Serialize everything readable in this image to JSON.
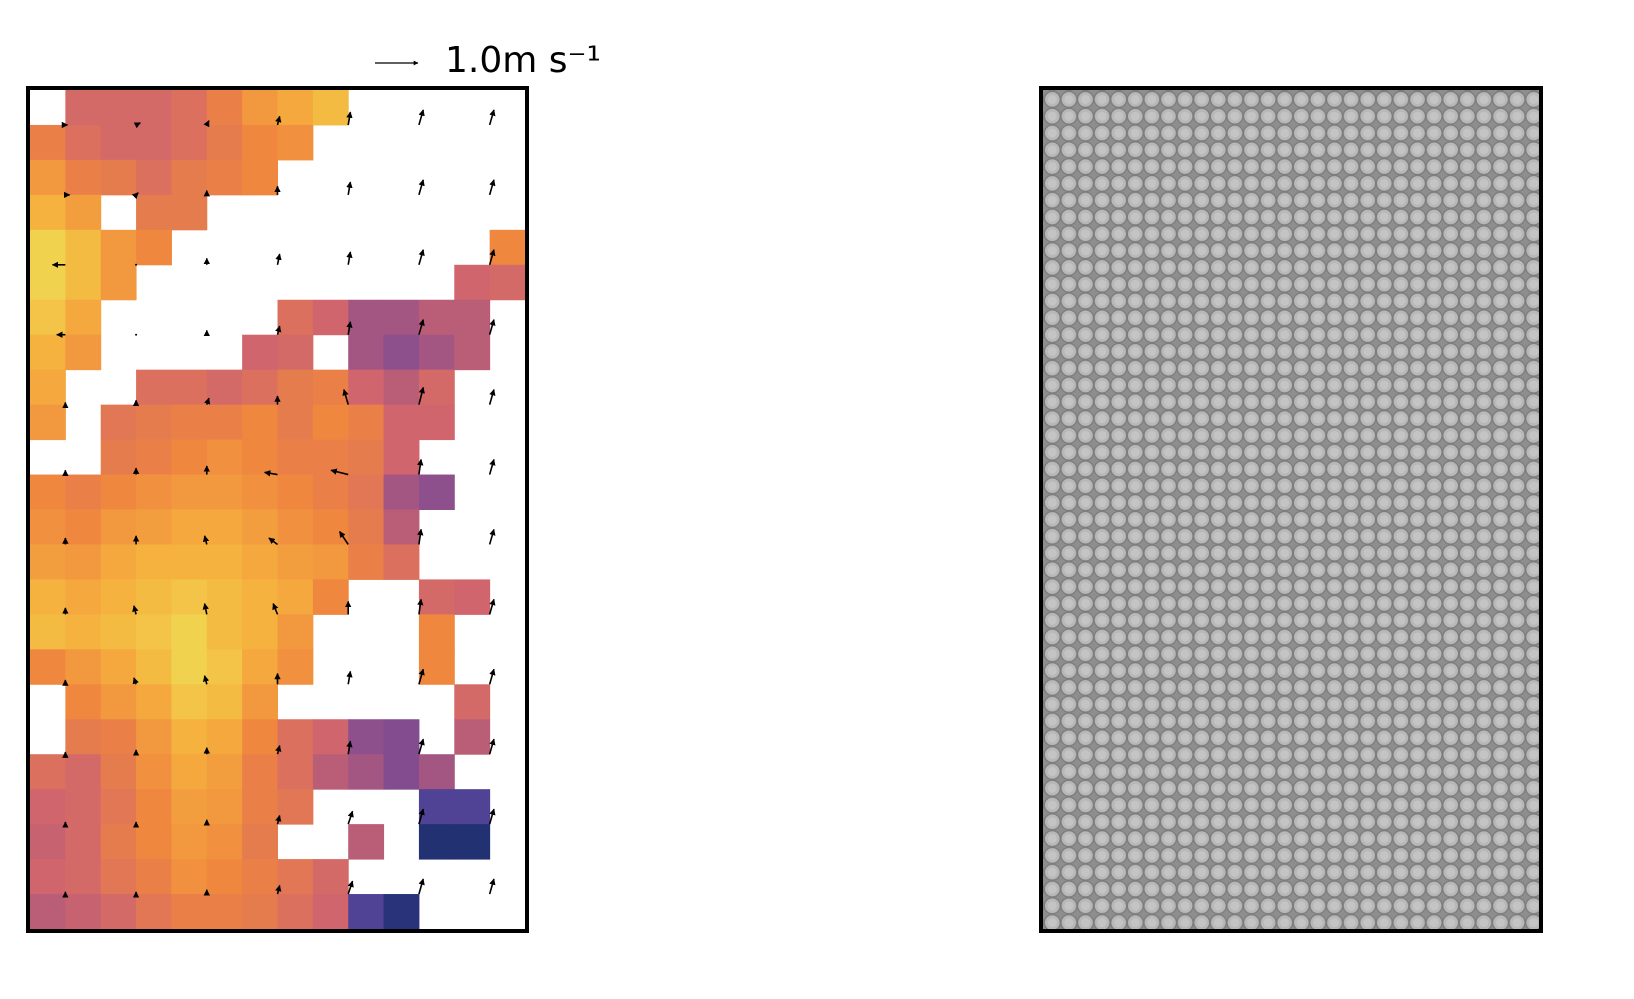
{
  "chart_data": {
    "type": "heatmap-quiver",
    "vlim": [
      0,
      1
    ],
    "colormap": [
      [
        0,
        "#0b2550"
      ],
      [
        0.25,
        "#3b3d96"
      ],
      [
        0.45,
        "#8e4f8d"
      ],
      [
        0.6,
        "#d0656d"
      ],
      [
        0.75,
        "#f0873f"
      ],
      [
        0.88,
        "#f5b23e"
      ],
      [
        1,
        "#eee95a"
      ]
    ],
    "values": [
      [
        null,
        0.62,
        0.62,
        0.62,
        0.65,
        0.72,
        0.8,
        0.85,
        0.9,
        null,
        null,
        null,
        null,
        null
      ],
      [
        0.72,
        0.65,
        0.62,
        0.62,
        0.65,
        0.7,
        0.75,
        0.78,
        null,
        null,
        null,
        null,
        null,
        null
      ],
      [
        0.8,
        0.72,
        0.7,
        0.65,
        0.7,
        0.72,
        0.75,
        null,
        null,
        null,
        null,
        null,
        null,
        null
      ],
      [
        0.88,
        0.82,
        null,
        0.7,
        0.7,
        null,
        null,
        null,
        null,
        null,
        null,
        null,
        null,
        null
      ],
      [
        0.95,
        0.9,
        0.8,
        0.75,
        null,
        null,
        null,
        null,
        null,
        null,
        null,
        null,
        null,
        0.75
      ],
      [
        0.95,
        0.9,
        0.8,
        null,
        null,
        null,
        null,
        null,
        null,
        null,
        null,
        null,
        0.6,
        0.62
      ],
      [
        0.92,
        0.85,
        null,
        null,
        null,
        null,
        null,
        0.65,
        0.6,
        0.5,
        0.5,
        0.55,
        0.55,
        null
      ],
      [
        0.88,
        0.8,
        null,
        null,
        null,
        null,
        0.6,
        0.62,
        null,
        0.5,
        0.45,
        0.5,
        0.55,
        null
      ],
      [
        0.85,
        null,
        null,
        0.65,
        0.65,
        0.62,
        0.65,
        0.7,
        0.72,
        0.6,
        0.55,
        0.62,
        null,
        null
      ],
      [
        0.8,
        null,
        0.68,
        0.7,
        0.72,
        0.72,
        0.75,
        0.7,
        0.75,
        0.72,
        0.6,
        0.6,
        null,
        null
      ],
      [
        null,
        null,
        0.7,
        0.72,
        0.75,
        0.78,
        0.75,
        0.72,
        0.72,
        0.7,
        0.6,
        null,
        null,
        null
      ],
      [
        0.75,
        0.72,
        0.75,
        0.78,
        0.8,
        0.8,
        0.78,
        0.75,
        0.72,
        0.68,
        0.5,
        0.45,
        null,
        null
      ],
      [
        0.78,
        0.75,
        0.8,
        0.82,
        0.85,
        0.85,
        0.82,
        0.78,
        0.75,
        0.7,
        0.55,
        null,
        null,
        null
      ],
      [
        0.82,
        0.8,
        0.85,
        0.88,
        0.88,
        0.88,
        0.85,
        0.82,
        0.8,
        0.72,
        0.65,
        null,
        null,
        null
      ],
      [
        0.88,
        0.85,
        0.88,
        0.9,
        0.92,
        0.9,
        0.88,
        0.85,
        0.75,
        null,
        null,
        0.62,
        0.6,
        null
      ],
      [
        0.9,
        0.88,
        0.9,
        0.92,
        0.95,
        0.9,
        0.88,
        0.8,
        null,
        null,
        null,
        0.75,
        null,
        null
      ],
      [
        0.75,
        0.8,
        0.85,
        0.9,
        0.95,
        0.92,
        0.85,
        0.78,
        null,
        null,
        null,
        0.75,
        null,
        null
      ],
      [
        null,
        0.75,
        0.8,
        0.85,
        0.92,
        0.9,
        0.8,
        null,
        null,
        null,
        null,
        null,
        0.62,
        null
      ],
      [
        null,
        0.7,
        0.72,
        0.8,
        0.88,
        0.85,
        0.75,
        0.65,
        0.6,
        0.45,
        0.42,
        null,
        0.55,
        null
      ],
      [
        0.65,
        0.62,
        0.7,
        0.78,
        0.85,
        0.82,
        0.72,
        0.65,
        0.55,
        0.5,
        0.42,
        0.5,
        null,
        null
      ],
      [
        0.6,
        0.62,
        0.68,
        0.75,
        0.82,
        0.8,
        0.72,
        0.68,
        null,
        null,
        null,
        0.3,
        0.3,
        null
      ],
      [
        0.58,
        0.62,
        0.7,
        0.75,
        0.8,
        0.78,
        0.7,
        null,
        null,
        0.55,
        null,
        0.12,
        0.12,
        null
      ],
      [
        0.6,
        0.62,
        0.68,
        0.72,
        0.78,
        0.75,
        0.72,
        0.68,
        0.62,
        null,
        null,
        null,
        null,
        null
      ],
      [
        0.55,
        0.58,
        0.62,
        0.68,
        0.72,
        0.72,
        0.7,
        0.65,
        0.6,
        0.3,
        0.15,
        null,
        null,
        null
      ]
    ],
    "u": [
      [
        0.05,
        0.1,
        0.05,
        0.05,
        0.05,
        0.1,
        0.1
      ],
      [
        0.1,
        0.05,
        0,
        0,
        0.05,
        0.1,
        0.1
      ],
      [
        -0.3,
        0,
        0,
        0.05,
        0.05,
        0.1,
        0.1
      ],
      [
        -0.2,
        0,
        0,
        0.05,
        0.05,
        0.1,
        0.1
      ],
      [
        0,
        0,
        0.05,
        0,
        -0.1,
        0.1,
        0.1
      ],
      [
        0,
        0,
        0,
        -0.3,
        -0.4,
        0.05,
        0.1
      ],
      [
        0,
        0,
        -0.05,
        -0.2,
        -0.2,
        0.05,
        0.1
      ],
      [
        0,
        -0.05,
        -0.05,
        -0.1,
        0,
        0.05,
        0.1
      ],
      [
        0,
        -0.05,
        -0.05,
        0,
        0.05,
        0.1,
        0.1
      ],
      [
        0,
        0,
        0,
        0.05,
        0.05,
        0.1,
        0.1
      ],
      [
        0,
        0,
        0,
        0.05,
        0.1,
        0.1,
        0.1
      ],
      [
        0,
        0,
        0,
        0.05,
        0.1,
        0.1,
        0.1
      ]
    ],
    "v": [
      [
        0,
        0.05,
        0.1,
        0.2,
        0.3,
        0.35,
        0.35
      ],
      [
        0,
        0.05,
        0.1,
        0.2,
        0.3,
        0.35,
        0.35
      ],
      [
        0,
        0,
        0.15,
        0.25,
        0.3,
        0.35,
        0.35
      ],
      [
        0,
        0,
        0.1,
        0.2,
        0.3,
        0.35,
        0.35
      ],
      [
        0.05,
        0.1,
        0.15,
        0.2,
        0.35,
        0.4,
        0.35
      ],
      [
        0.1,
        0.15,
        0.2,
        0.05,
        0.1,
        0.35,
        0.35
      ],
      [
        0.15,
        0.2,
        0.2,
        0.15,
        0.3,
        0.35,
        0.35
      ],
      [
        0.15,
        0.2,
        0.25,
        0.25,
        0.3,
        0.35,
        0.35
      ],
      [
        0.1,
        0.15,
        0.2,
        0.25,
        0.3,
        0.35,
        0.35
      ],
      [
        0.05,
        0.1,
        0.15,
        0.2,
        0.3,
        0.35,
        0.35
      ],
      [
        0.05,
        0.05,
        0.1,
        0.2,
        0.3,
        0.35,
        0.35
      ],
      [
        0.05,
        0.05,
        0.1,
        0.2,
        0.3,
        0.35,
        0.35
      ]
    ],
    "quiver_key": {
      "value": 1,
      "label": "1.0m s⁻¹"
    }
  }
}
